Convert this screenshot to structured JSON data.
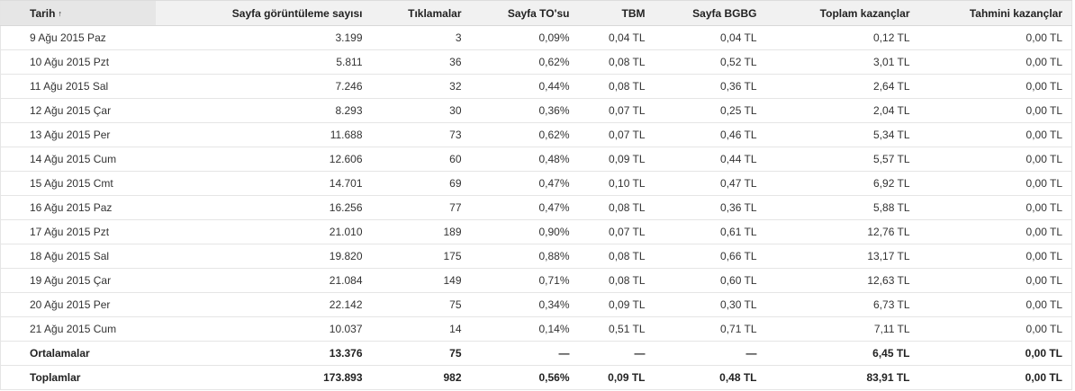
{
  "table": {
    "headers": {
      "date": "Tarih",
      "page_views": "Sayfa görüntüleme sayısı",
      "clicks": "Tıklamalar",
      "page_ctr": "Sayfa TO'su",
      "cpc": "TBM",
      "page_rpm": "Sayfa BGBG",
      "total_earnings": "Toplam kazançlar",
      "estimated_earnings": "Tahmini kazançlar"
    },
    "sort_arrow": "↑",
    "rows": [
      [
        "9 Ağu 2015 Paz",
        "3.199",
        "3",
        "0,09%",
        "0,04 TL",
        "0,04 TL",
        "0,12 TL",
        "0,00 TL"
      ],
      [
        "10 Ağu 2015 Pzt",
        "5.811",
        "36",
        "0,62%",
        "0,08 TL",
        "0,52 TL",
        "3,01 TL",
        "0,00 TL"
      ],
      [
        "11 Ağu 2015 Sal",
        "7.246",
        "32",
        "0,44%",
        "0,08 TL",
        "0,36 TL",
        "2,64 TL",
        "0,00 TL"
      ],
      [
        "12 Ağu 2015 Çar",
        "8.293",
        "30",
        "0,36%",
        "0,07 TL",
        "0,25 TL",
        "2,04 TL",
        "0,00 TL"
      ],
      [
        "13 Ağu 2015 Per",
        "11.688",
        "73",
        "0,62%",
        "0,07 TL",
        "0,46 TL",
        "5,34 TL",
        "0,00 TL"
      ],
      [
        "14 Ağu 2015 Cum",
        "12.606",
        "60",
        "0,48%",
        "0,09 TL",
        "0,44 TL",
        "5,57 TL",
        "0,00 TL"
      ],
      [
        "15 Ağu 2015 Cmt",
        "14.701",
        "69",
        "0,47%",
        "0,10 TL",
        "0,47 TL",
        "6,92 TL",
        "0,00 TL"
      ],
      [
        "16 Ağu 2015 Paz",
        "16.256",
        "77",
        "0,47%",
        "0,08 TL",
        "0,36 TL",
        "5,88 TL",
        "0,00 TL"
      ],
      [
        "17 Ağu 2015 Pzt",
        "21.010",
        "189",
        "0,90%",
        "0,07 TL",
        "0,61 TL",
        "12,76 TL",
        "0,00 TL"
      ],
      [
        "18 Ağu 2015 Sal",
        "19.820",
        "175",
        "0,88%",
        "0,08 TL",
        "0,66 TL",
        "13,17 TL",
        "0,00 TL"
      ],
      [
        "19 Ağu 2015 Çar",
        "21.084",
        "149",
        "0,71%",
        "0,08 TL",
        "0,60 TL",
        "12,63 TL",
        "0,00 TL"
      ],
      [
        "20 Ağu 2015 Per",
        "22.142",
        "75",
        "0,34%",
        "0,09 TL",
        "0,30 TL",
        "6,73 TL",
        "0,00 TL"
      ],
      [
        "21 Ağu 2015 Cum",
        "10.037",
        "14",
        "0,14%",
        "0,51 TL",
        "0,71 TL",
        "7,11 TL",
        "0,00 TL"
      ]
    ],
    "averages": [
      "Ortalamalar",
      "13.376",
      "75",
      "—",
      "—",
      "—",
      "6,45 TL",
      "0,00 TL"
    ],
    "totals": [
      "Toplamlar",
      "173.893",
      "982",
      "0,56%",
      "0,09 TL",
      "0,48 TL",
      "83,91 TL",
      "0,00 TL"
    ]
  }
}
